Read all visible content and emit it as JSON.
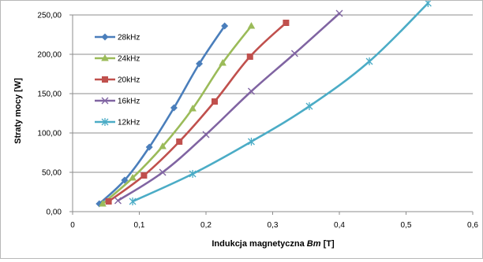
{
  "chart_data": {
    "type": "line",
    "title": "",
    "xlabel_main": "Indukcja magnetyczna ",
    "xlabel_var": "Bm",
    "xlabel_unit": " [T]",
    "ylabel": "Straty mocy [W]",
    "xlim": [
      0,
      0.6
    ],
    "ylim": [
      0,
      250
    ],
    "x_ticks": [
      0,
      0.1,
      0.2,
      0.3,
      0.4,
      0.5,
      0.6
    ],
    "x_tick_labels": [
      "0",
      "0,1",
      "0,2",
      "0,3",
      "0,4",
      "0,5",
      "0,6"
    ],
    "y_ticks": [
      0,
      50,
      100,
      150,
      200,
      250
    ],
    "y_tick_labels": [
      "0,00",
      "50,00",
      "100,00",
      "150,00",
      "200,00",
      "250,00"
    ],
    "grid": "horizontal",
    "legend_position": "top-left",
    "series": [
      {
        "name": "28kHz",
        "color": "#4a7ebb",
        "marker": "diamond",
        "x": [
          0.04,
          0.078,
          0.115,
          0.152,
          0.19,
          0.228
        ],
        "y": [
          10,
          40,
          82,
          132,
          188,
          236
        ]
      },
      {
        "name": "24kHz",
        "color": "#9bbb59",
        "marker": "triangle",
        "x": [
          0.045,
          0.09,
          0.135,
          0.18,
          0.225,
          0.268
        ],
        "y": [
          10,
          43,
          83,
          131,
          189,
          236
        ]
      },
      {
        "name": "20kHz",
        "color": "#c0504d",
        "marker": "square",
        "x": [
          0.054,
          0.107,
          0.16,
          0.213,
          0.266,
          0.32
        ],
        "y": [
          13,
          46,
          89,
          140,
          197,
          240
        ]
      },
      {
        "name": "16kHz",
        "color": "#8064a2",
        "marker": "x",
        "x": [
          0.068,
          0.135,
          0.2,
          0.268,
          0.333,
          0.4
        ],
        "y": [
          14,
          50,
          98,
          153,
          201,
          252
        ]
      },
      {
        "name": "12kHz",
        "color": "#4bacc6",
        "marker": "star",
        "x": [
          0.09,
          0.18,
          0.268,
          0.355,
          0.445,
          0.533
        ],
        "y": [
          13,
          48,
          89,
          134,
          191,
          265
        ]
      }
    ]
  }
}
